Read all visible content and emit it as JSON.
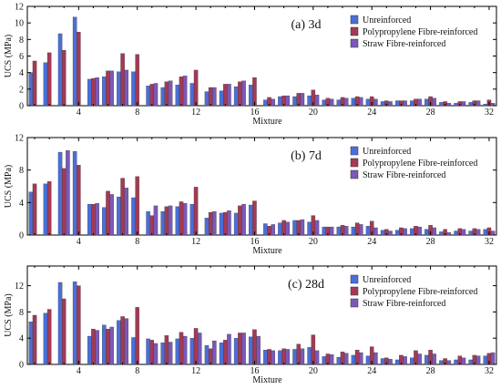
{
  "chart_data": [
    {
      "type": "bar",
      "title": "(a) 3d",
      "xlabel": "Mixture",
      "ylabel": "UCS (MPa)",
      "ylim": [
        0,
        12
      ],
      "yticks": [
        0,
        2,
        4,
        6,
        8,
        10,
        12
      ],
      "xticks": [
        4,
        8,
        12,
        16,
        20,
        24,
        28,
        32
      ],
      "legend_position": "top-right",
      "categories": [
        1,
        2,
        3,
        4,
        5,
        6,
        7,
        8,
        9,
        10,
        11,
        12,
        13,
        14,
        15,
        16,
        17,
        18,
        19,
        20,
        21,
        22,
        23,
        24,
        25,
        26,
        27,
        28,
        29,
        30,
        31,
        32
      ],
      "series": [
        {
          "name": "Unreinforced",
          "color": "#4a6fd9",
          "values": [
            4.0,
            5.2,
            8.7,
            10.7,
            3.2,
            3.5,
            4.1,
            4.1,
            2.4,
            2.2,
            2.5,
            2.7,
            1.7,
            1.8,
            2.3,
            2.5,
            0.7,
            1.1,
            1.1,
            1.2,
            0.7,
            0.7,
            0.9,
            0.8,
            0.5,
            0.6,
            0.6,
            0.8,
            0.4,
            0.3,
            0.4,
            0.2
          ]
        },
        {
          "name": "Polypropylene Fibre-reinforced",
          "color": "#a33a55",
          "values": [
            5.4,
            6.4,
            6.7,
            8.9,
            3.3,
            4.2,
            6.3,
            6.2,
            2.6,
            2.9,
            3.5,
            4.3,
            2.2,
            2.6,
            2.9,
            3.4,
            1.0,
            1.2,
            1.5,
            1.9,
            0.9,
            1.0,
            1.1,
            1.1,
            0.6,
            0.6,
            0.8,
            1.1,
            0.5,
            0.5,
            0.6,
            0.7
          ]
        },
        {
          "name": "Straw Fibre-reinforced",
          "color": "#7a59b8",
          "values": [
            0,
            0,
            0,
            0,
            3.4,
            4.2,
            4.3,
            0,
            2.7,
            3.0,
            3.6,
            0,
            2.2,
            2.6,
            3.0,
            0,
            0.8,
            1.2,
            1.5,
            1.3,
            0.8,
            0.9,
            1.0,
            0.8,
            0.5,
            0.6,
            0.8,
            0.9,
            0.3,
            0.5,
            0.6,
            0.3
          ]
        }
      ]
    },
    {
      "type": "bar",
      "title": "(b) 7d",
      "xlabel": "Mixture",
      "ylabel": "UCS (MPa)",
      "ylim": [
        0,
        12
      ],
      "yticks": [
        0,
        4,
        8,
        12
      ],
      "xticks": [
        4,
        8,
        12,
        16,
        20,
        24,
        28,
        32
      ],
      "legend_position": "top-right",
      "categories": [
        1,
        2,
        3,
        4,
        5,
        6,
        7,
        8,
        9,
        10,
        11,
        12,
        13,
        14,
        15,
        16,
        17,
        18,
        19,
        20,
        21,
        22,
        23,
        24,
        25,
        26,
        27,
        28,
        29,
        30,
        31,
        32
      ],
      "series": [
        {
          "name": "Unreinforced",
          "color": "#4a6fd9",
          "values": [
            5.3,
            6.3,
            10.2,
            10.3,
            3.8,
            3.4,
            4.7,
            4.6,
            2.9,
            2.9,
            3.5,
            3.8,
            2.1,
            2.7,
            2.7,
            3.7,
            1.4,
            1.5,
            1.8,
            1.6,
            1.0,
            1.0,
            1.0,
            1.1,
            0.6,
            0.6,
            0.8,
            0.7,
            0.4,
            0.5,
            0.5,
            0.7
          ]
        },
        {
          "name": "Polypropylene Fibre-reinforced",
          "color": "#a33a55",
          "values": [
            6.3,
            6.6,
            8.2,
            8.6,
            3.8,
            5.4,
            7.0,
            7.2,
            2.4,
            3.5,
            4.1,
            5.9,
            2.8,
            2.8,
            3.6,
            4.2,
            1.1,
            1.8,
            1.8,
            2.4,
            1.0,
            1.2,
            1.5,
            1.7,
            0.7,
            0.9,
            1.1,
            1.2,
            0.7,
            0.8,
            0.8,
            0.9
          ]
        },
        {
          "name": "Straw Fibre-reinforced",
          "color": "#7a59b8",
          "values": [
            0,
            0,
            10.4,
            0,
            3.9,
            5.0,
            5.8,
            0,
            3.6,
            3.6,
            3.9,
            0,
            2.9,
            3.0,
            3.8,
            0,
            1.3,
            1.6,
            1.9,
            1.8,
            1.0,
            1.1,
            1.3,
            0.9,
            0.5,
            0.8,
            1.0,
            0.9,
            0.3,
            0.7,
            0.7,
            0.5
          ]
        }
      ]
    },
    {
      "type": "bar",
      "title": "(c) 28d",
      "xlabel": "Mixture",
      "ylabel": "UCS (MPa)",
      "ylim": [
        0,
        15
      ],
      "yticks": [
        0,
        4,
        8,
        12
      ],
      "xticks": [
        4,
        8,
        12,
        16,
        20,
        24,
        28,
        32
      ],
      "legend_position": "top-right",
      "categories": [
        1,
        2,
        3,
        4,
        5,
        6,
        7,
        8,
        9,
        10,
        11,
        12,
        13,
        14,
        15,
        16,
        17,
        18,
        19,
        20,
        21,
        22,
        23,
        24,
        25,
        26,
        27,
        28,
        29,
        30,
        31,
        32
      ],
      "series": [
        {
          "name": "Unreinforced",
          "color": "#4a6fd9",
          "values": [
            6.5,
            7.8,
            12.5,
            12.6,
            4.3,
            6.0,
            6.7,
            4.1,
            3.9,
            3.3,
            3.9,
            4.0,
            2.9,
            3.3,
            4.0,
            4.2,
            2.2,
            2.1,
            2.3,
            2.6,
            1.2,
            1.1,
            1.4,
            1.3,
            0.9,
            0.7,
            1.0,
            1.4,
            0.6,
            0.7,
            0.7,
            1.3
          ]
        },
        {
          "name": "Polypropylene Fibre-reinforced",
          "color": "#a33a55",
          "values": [
            7.5,
            8.4,
            10.0,
            12.0,
            5.4,
            5.4,
            7.3,
            8.7,
            3.7,
            4.4,
            4.9,
            5.5,
            2.4,
            3.7,
            4.8,
            5.3,
            2.3,
            2.4,
            3.1,
            4.5,
            1.6,
            1.9,
            2.2,
            2.7,
            1.0,
            1.4,
            2.1,
            2.2,
            0.9,
            1.3,
            1.4,
            1.7
          ]
        },
        {
          "name": "Straw Fibre-reinforced",
          "color": "#7a59b8",
          "values": [
            0,
            0,
            0,
            0,
            5.2,
            5.7,
            7.0,
            0,
            3.2,
            3.4,
            4.3,
            4.8,
            3.6,
            4.6,
            4.8,
            4.3,
            2.1,
            2.3,
            2.4,
            2.1,
            1.5,
            1.7,
            1.8,
            1.8,
            0.8,
            1.2,
            1.6,
            1.6,
            0.6,
            1.0,
            1.3,
            1.8
          ]
        }
      ]
    }
  ]
}
